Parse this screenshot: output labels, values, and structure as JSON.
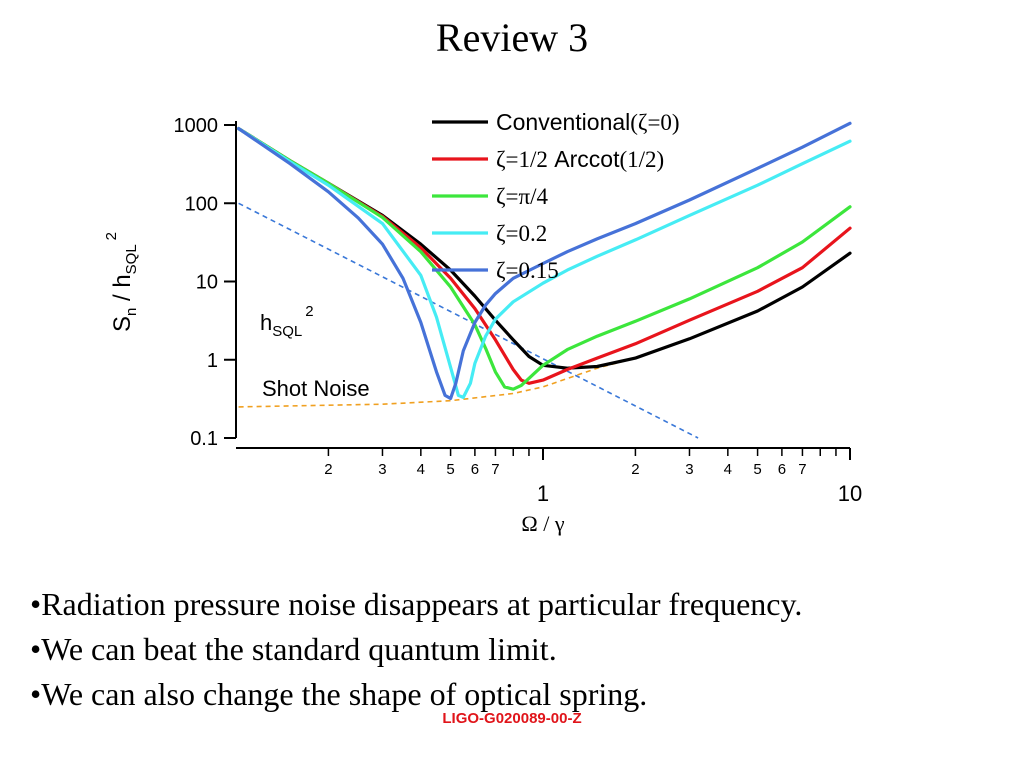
{
  "slide": {
    "title": "Review 3",
    "bullets": [
      "•Radiation pressure noise disappears at particular frequency.",
      "•We can beat the standard quantum limit.",
      "•We can also change the shape of optical spring."
    ],
    "footer": "LIGO-G020089-00-Z"
  },
  "chart_data": {
    "type": "line",
    "x_scale": "log",
    "y_scale": "log",
    "xlim": [
      0.1,
      10
    ],
    "ylim": [
      0.1,
      1000
    ],
    "xlabel": "Ω / γ",
    "ylabel": {
      "main": "S",
      "sub1": "n",
      "mid": " / h",
      "sub2": "SQL",
      "sup": "2"
    },
    "x_major_ticks": [
      {
        "value": 1,
        "label": "1"
      },
      {
        "value": 10,
        "label": "10"
      }
    ],
    "x_minor_ticks": [
      {
        "value": 0.2,
        "label": "2"
      },
      {
        "value": 0.3,
        "label": "3"
      },
      {
        "value": 0.4,
        "label": "4"
      },
      {
        "value": 0.5,
        "label": "5"
      },
      {
        "value": 0.6,
        "label": "6"
      },
      {
        "value": 0.7,
        "label": "7"
      },
      {
        "value": 0.8,
        "label": ""
      },
      {
        "value": 0.9,
        "label": ""
      },
      {
        "value": 2,
        "label": "2"
      },
      {
        "value": 3,
        "label": "3"
      },
      {
        "value": 4,
        "label": "4"
      },
      {
        "value": 5,
        "label": "5"
      },
      {
        "value": 6,
        "label": "6"
      },
      {
        "value": 7,
        "label": "7"
      },
      {
        "value": 8,
        "label": ""
      },
      {
        "value": 9,
        "label": ""
      }
    ],
    "y_ticks": [
      {
        "value": 0.1,
        "label": "0.1"
      },
      {
        "value": 1,
        "label": "1"
      },
      {
        "value": 10,
        "label": "10"
      },
      {
        "value": 100,
        "label": "100"
      },
      {
        "value": 1000,
        "label": "1000"
      }
    ],
    "legend_position": "top-right",
    "series": [
      {
        "name_text": "Conventional",
        "name_math": "(ζ=0)",
        "math_first": false,
        "color": "#000000",
        "x": [
          0.102,
          0.15,
          0.2,
          0.3,
          0.4,
          0.5,
          0.6,
          0.7,
          0.8,
          0.9,
          1.0,
          1.2,
          1.5,
          2,
          3,
          5,
          7,
          10
        ],
        "y": [
          900,
          350,
          180,
          70,
          30,
          14,
          6.5,
          3.2,
          1.8,
          1.1,
          0.85,
          0.78,
          0.82,
          1.05,
          1.85,
          4.2,
          8.5,
          23
        ]
      },
      {
        "name_text": "Arccot",
        "name_math": "ζ=1/2",
        "name_math2": "(1/2)",
        "math_first": true,
        "color": "#e8141c",
        "x": [
          0.102,
          0.15,
          0.2,
          0.3,
          0.4,
          0.5,
          0.6,
          0.7,
          0.8,
          0.85,
          0.9,
          1.0,
          1.2,
          1.5,
          2,
          3,
          5,
          7,
          10
        ],
        "y": [
          900,
          350,
          180,
          68,
          27,
          11,
          4.5,
          1.8,
          0.75,
          0.55,
          0.5,
          0.55,
          0.75,
          1.05,
          1.6,
          3.2,
          7.5,
          15,
          48
        ]
      },
      {
        "name_text": "",
        "name_math": "ζ=π/4",
        "math_first": true,
        "color": "#3ce63c",
        "x": [
          0.102,
          0.15,
          0.2,
          0.3,
          0.4,
          0.5,
          0.6,
          0.65,
          0.7,
          0.75,
          0.8,
          0.85,
          0.9,
          1.0,
          1.2,
          1.5,
          2,
          3,
          5,
          7,
          10
        ],
        "y": [
          900,
          350,
          180,
          66,
          24,
          8.5,
          2.8,
          1.4,
          0.7,
          0.45,
          0.42,
          0.47,
          0.58,
          0.85,
          1.35,
          2.0,
          3.1,
          6.0,
          15,
          32,
          90
        ]
      },
      {
        "name_text": "",
        "name_math": "ζ=0.2",
        "math_first": true,
        "color": "#46ecf4",
        "x": [
          0.102,
          0.15,
          0.2,
          0.3,
          0.4,
          0.45,
          0.5,
          0.53,
          0.55,
          0.58,
          0.6,
          0.65,
          0.7,
          0.8,
          1.0,
          1.2,
          1.5,
          2,
          3,
          5,
          7,
          10
        ],
        "y": [
          900,
          340,
          170,
          55,
          12,
          3.5,
          0.8,
          0.35,
          0.33,
          0.5,
          0.9,
          2.0,
          3.3,
          5.5,
          9.5,
          14,
          21,
          34,
          70,
          170,
          320,
          620
        ]
      },
      {
        "name_text": "",
        "name_math": "ζ=0.15",
        "math_first": true,
        "color": "#4672d8",
        "x": [
          0.102,
          0.15,
          0.2,
          0.25,
          0.3,
          0.35,
          0.4,
          0.45,
          0.48,
          0.5,
          0.52,
          0.55,
          0.6,
          0.65,
          0.7,
          0.8,
          1.0,
          1.2,
          1.5,
          2,
          3,
          5,
          7,
          10
        ],
        "y": [
          900,
          320,
          140,
          65,
          30,
          11,
          3.0,
          0.7,
          0.35,
          0.32,
          0.5,
          1.3,
          3.0,
          5.0,
          7.0,
          11,
          17,
          24,
          35,
          55,
          110,
          280,
          520,
          1050
        ]
      }
    ],
    "reference_lines": [
      {
        "label_main": "h",
        "label_sub": "SQL",
        "label_sup": "2",
        "color": "#3a78d8",
        "style": "dashed",
        "x": [
          0.102,
          3.2
        ],
        "y": [
          100,
          0.1
        ]
      },
      {
        "label": "Shot Noise",
        "color": "#f0a020",
        "style": "dashed",
        "x": [
          0.102,
          0.3,
          0.5,
          0.8,
          1.0,
          1.5,
          2,
          3,
          5,
          7,
          10
        ],
        "y": [
          0.25,
          0.27,
          0.3,
          0.37,
          0.45,
          0.78,
          1.05,
          1.85,
          4.2,
          8.5,
          23
        ]
      }
    ]
  }
}
